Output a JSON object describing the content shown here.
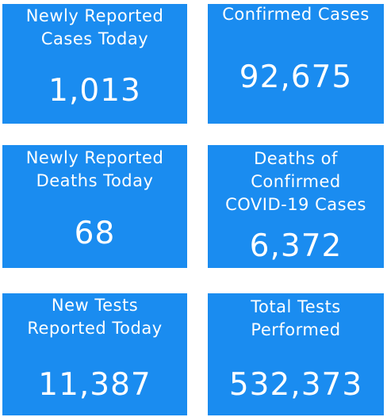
{
  "tiles": [
    {
      "label": [
        "Newly Reported",
        "Cases Today"
      ],
      "value": "1,013"
    },
    {
      "label": [
        "Confirmed Cases"
      ],
      "value": "92,675"
    },
    {
      "label": [
        "Newly Reported",
        "Deaths Today"
      ],
      "value": "68"
    },
    {
      "label": [
        "Deaths of",
        "Confirmed",
        "COVID-19 Cases"
      ],
      "value": "6,372"
    },
    {
      "label": [
        "New Tests",
        "Reported Today"
      ],
      "value": "11,387"
    },
    {
      "label": [
        "Total Tests",
        "Performed"
      ],
      "value": "532,373"
    }
  ]
}
